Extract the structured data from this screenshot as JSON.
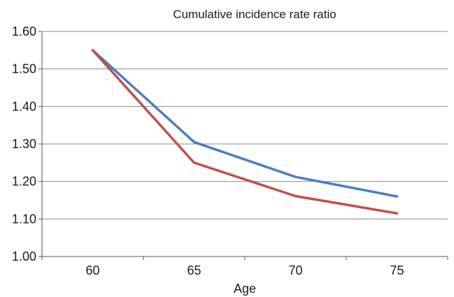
{
  "chart_data": {
    "type": "line",
    "title": "Cumulative incidence rate ratio",
    "xlabel": "Age",
    "ylabel": "",
    "categories": [
      "60",
      "65",
      "70",
      "75"
    ],
    "ylim": [
      1.0,
      1.6
    ],
    "yticks": [
      "1.00",
      "1.10",
      "1.20",
      "1.30",
      "1.40",
      "1.50",
      "1.60"
    ],
    "grid": "horizontal",
    "series": [
      {
        "color": "#4a7fbd",
        "values": [
          1.55,
          1.305,
          1.212,
          1.16
        ]
      },
      {
        "color": "#c0504d",
        "values": [
          1.55,
          1.25,
          1.161,
          1.115
        ]
      }
    ]
  }
}
